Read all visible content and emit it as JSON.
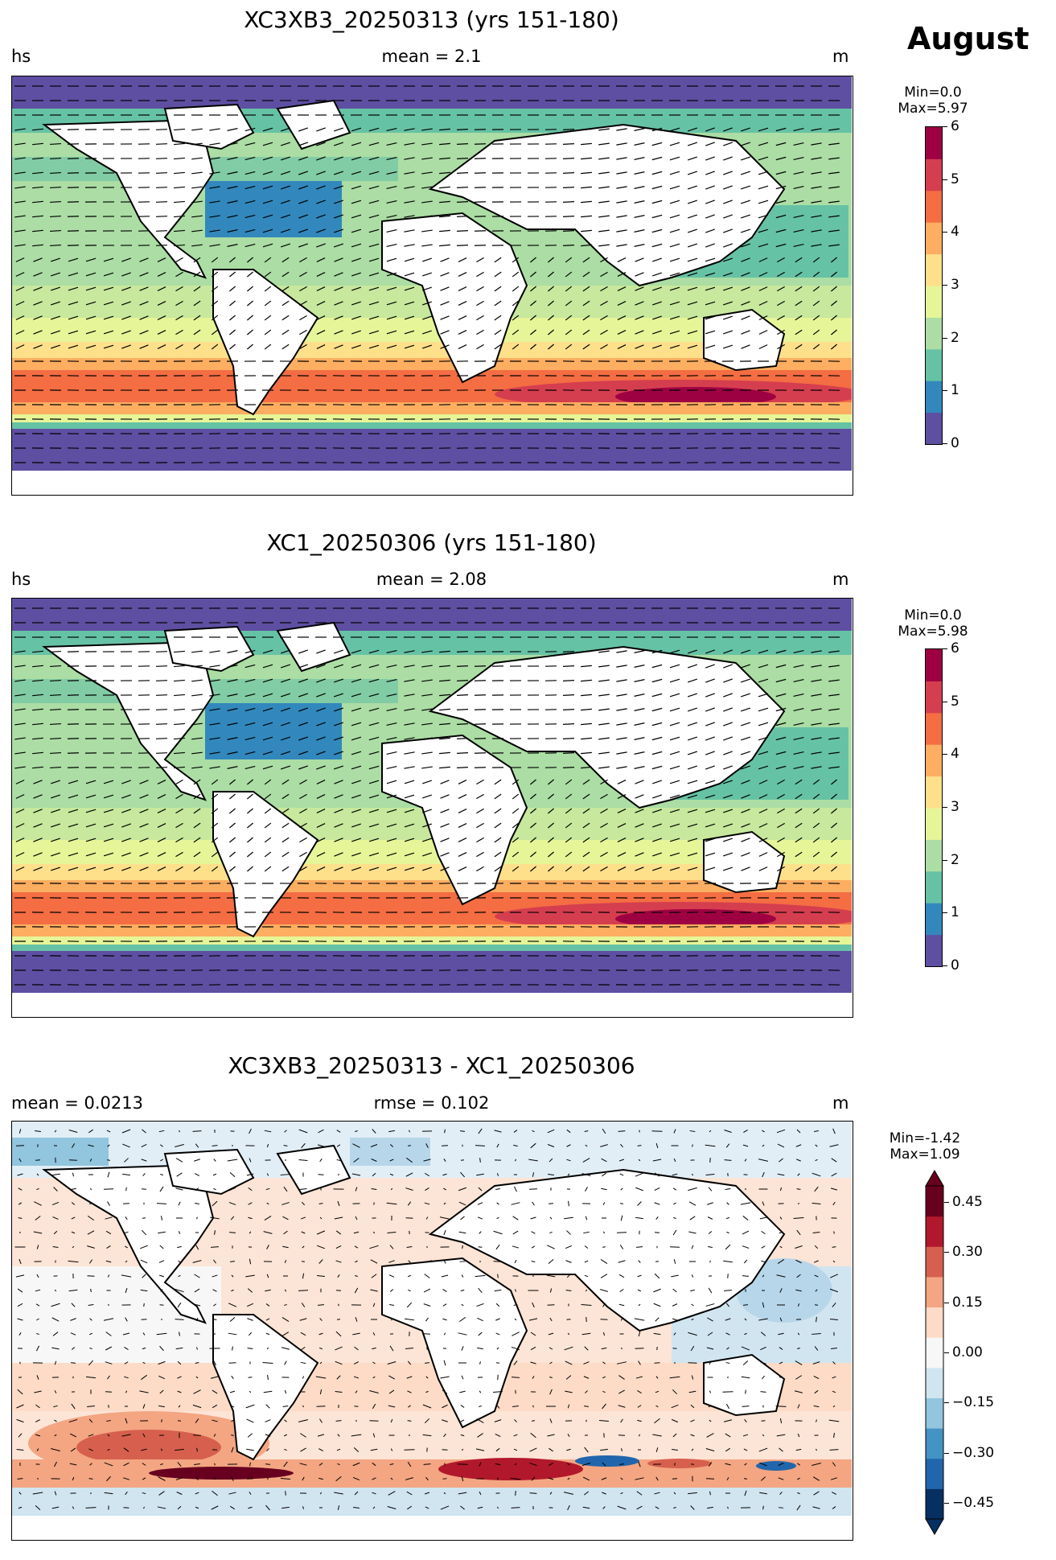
{
  "figure": {
    "month": "August"
  },
  "panels": [
    {
      "title": "XC3XB3_20250313 (yrs 151-180)",
      "left_label": "hs",
      "center_label": "mean = 2.1",
      "right_label": "m",
      "minmax": [
        "Min=0.0",
        "Max=5.97"
      ],
      "colorbar_ticks": [
        "0",
        "1",
        "2",
        "3",
        "4",
        "5",
        "6"
      ],
      "palette": [
        "#5e4fa2",
        "#3288bd",
        "#66c2a5",
        "#abdda4",
        "#e6f598",
        "#fee08b",
        "#fdae61",
        "#f46d43",
        "#d53e4f",
        "#9e0142"
      ]
    },
    {
      "title": "XC1_20250306 (yrs 151-180)",
      "left_label": "hs",
      "center_label": "mean = 2.08",
      "right_label": "m",
      "minmax": [
        "Min=0.0",
        "Max=5.98"
      ],
      "colorbar_ticks": [
        "0",
        "1",
        "2",
        "3",
        "4",
        "5",
        "6"
      ],
      "palette": [
        "#5e4fa2",
        "#3288bd",
        "#66c2a5",
        "#abdda4",
        "#e6f598",
        "#fee08b",
        "#fdae61",
        "#f46d43",
        "#d53e4f",
        "#9e0142"
      ]
    },
    {
      "title": "XC3XB3_20250313 - XC1_20250306",
      "left_label": "mean = 0.0213",
      "center_label": "rmse = 0.102",
      "right_label": "m",
      "minmax": [
        "Min=-1.42",
        "Max=1.09"
      ],
      "colorbar_ticks": [
        "0.45",
        "0.30",
        "0.15",
        "0.00",
        "−0.15",
        "−0.30",
        "−0.45"
      ],
      "palette": [
        "#053061",
        "#2166ac",
        "#4393c3",
        "#92c5de",
        "#d1e5f0",
        "#f7f7f7",
        "#fddbc7",
        "#f4a582",
        "#d6604d",
        "#b2182b",
        "#67001f"
      ]
    }
  ]
}
